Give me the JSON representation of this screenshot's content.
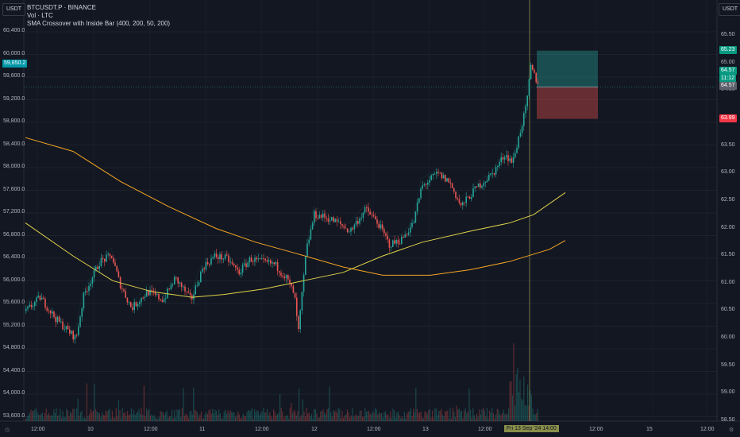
{
  "legend": {
    "symbol": "BTCUSDT.P · BINANCE",
    "volume": "Vol · LTC",
    "indicator": "SMA Crossover with Inside Bar (400, 200, 50, 200)"
  },
  "units": {
    "left": "USDT",
    "right": "USDT"
  },
  "left_axis": {
    "ticks": [
      "60,400.0",
      "60,000.0",
      "59,600.0",
      "59,200.0",
      "58,800.0",
      "58,400.0",
      "58,000.0",
      "57,600.0",
      "57,200.0",
      "56,800.0",
      "56,400.0",
      "56,000.0",
      "55,600.0",
      "55,200.0",
      "54,800.0",
      "54,400.0",
      "54,000.0",
      "53,600.0"
    ],
    "range": [
      53600,
      60400
    ]
  },
  "right_axis": {
    "ticks": [
      "65.50",
      "65.00",
      "64.50",
      "64.00",
      "63.50",
      "63.00",
      "62.50",
      "62.00",
      "61.50",
      "61.00",
      "60.50",
      "60.00",
      "59.50",
      "59.00",
      "58.50"
    ],
    "range": [
      58.5,
      65.5
    ]
  },
  "x_axis": {
    "ticks": [
      "12:00",
      "10",
      "12:00",
      "11",
      "12:00",
      "12",
      "12:00",
      "13",
      "12:00",
      "Fri 13 Sep '24  14:00",
      "12:00",
      "15",
      "12:00"
    ]
  },
  "tags": {
    "btc_price": "59,850.2",
    "take_profit": "65.23",
    "last_price": "64.57",
    "countdown": "11:12",
    "entry": "64.57",
    "stop_loss": "63.99"
  },
  "colors": {
    "bg": "#131722",
    "up": "#26a69a",
    "down": "#ef5350",
    "sma_slow": "#f5a623",
    "sma_fast": "#e0d24a",
    "cursor": "#8a8f4a"
  },
  "chart_data": {
    "type": "candlestick",
    "series": [
      {
        "name": "SMA 400",
        "points": [
          [
            0,
            63.65
          ],
          [
            60,
            63.4
          ],
          [
            120,
            62.85
          ],
          [
            180,
            62.4
          ],
          [
            240,
            62.0
          ],
          [
            290,
            61.75
          ],
          [
            340,
            61.55
          ],
          [
            400,
            61.3
          ],
          [
            450,
            61.15
          ],
          [
            510,
            61.15
          ],
          [
            560,
            61.25
          ],
          [
            610,
            61.4
          ],
          [
            660,
            61.62
          ],
          [
            680,
            61.78
          ]
        ]
      },
      {
        "name": "SMA 200",
        "points": [
          [
            0,
            62.1
          ],
          [
            60,
            61.5
          ],
          [
            110,
            61.05
          ],
          [
            160,
            60.85
          ],
          [
            210,
            60.75
          ],
          [
            250,
            60.8
          ],
          [
            300,
            60.9
          ],
          [
            350,
            61.05
          ],
          [
            400,
            61.2
          ],
          [
            450,
            61.5
          ],
          [
            500,
            61.75
          ],
          [
            560,
            61.95
          ],
          [
            610,
            62.1
          ],
          [
            640,
            62.25
          ],
          [
            680,
            62.65
          ]
        ]
      },
      {
        "name": "price",
        "points": [
          [
            32,
            60.5
          ],
          [
            50,
            60.75
          ],
          [
            70,
            60.35
          ],
          [
            95,
            60.0
          ],
          [
            105,
            60.8
          ],
          [
            125,
            61.4
          ],
          [
            140,
            61.5
          ],
          [
            150,
            61.0
          ],
          [
            165,
            60.55
          ],
          [
            185,
            60.85
          ],
          [
            205,
            60.7
          ],
          [
            220,
            61.1
          ],
          [
            240,
            60.7
          ],
          [
            255,
            61.3
          ],
          [
            270,
            61.5
          ],
          [
            285,
            61.45
          ],
          [
            300,
            61.2
          ],
          [
            315,
            61.45
          ],
          [
            325,
            61.4
          ],
          [
            345,
            61.35
          ],
          [
            360,
            61.1
          ],
          [
            370,
            60.8
          ],
          [
            375,
            60.1
          ],
          [
            385,
            61.6
          ],
          [
            395,
            62.25
          ],
          [
            410,
            62.2
          ],
          [
            425,
            62.1
          ],
          [
            440,
            61.95
          ],
          [
            460,
            62.35
          ],
          [
            475,
            62.1
          ],
          [
            490,
            61.7
          ],
          [
            505,
            61.8
          ],
          [
            520,
            62.1
          ],
          [
            530,
            62.75
          ],
          [
            550,
            63.0
          ],
          [
            565,
            62.85
          ],
          [
            580,
            62.4
          ],
          [
            600,
            62.75
          ],
          [
            620,
            63.0
          ],
          [
            635,
            63.35
          ],
          [
            645,
            63.2
          ],
          [
            655,
            63.8
          ],
          [
            662,
            64.2
          ],
          [
            668,
            64.95
          ],
          [
            673,
            64.75
          ],
          [
            678,
            64.57
          ]
        ]
      }
    ],
    "position": {
      "take_profit": 65.23,
      "entry": 64.57,
      "stop_loss": 63.99
    }
  }
}
